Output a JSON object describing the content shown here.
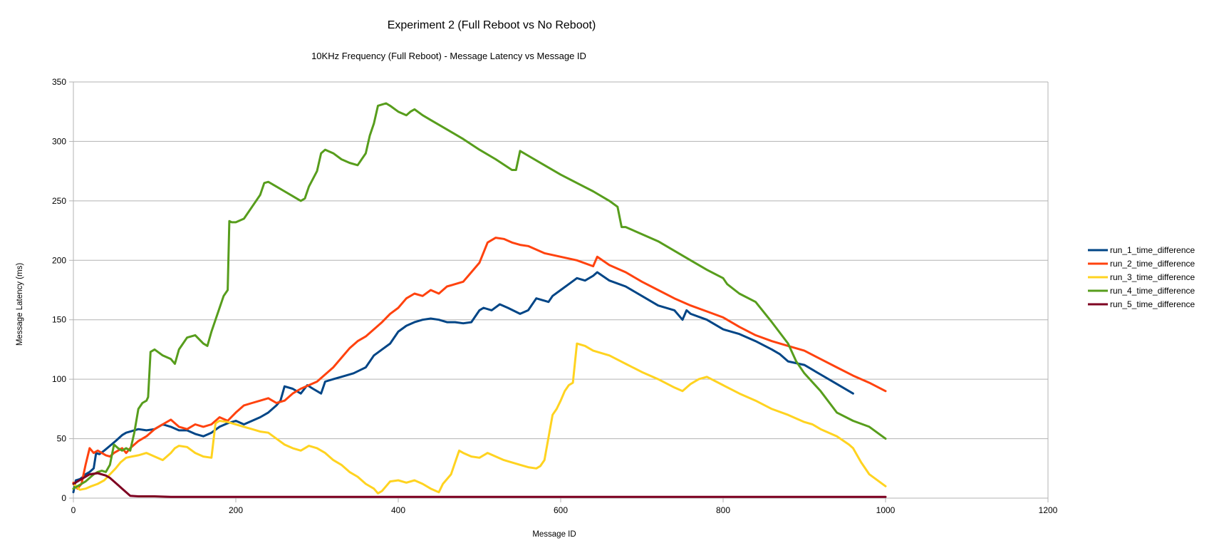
{
  "chart_data": {
    "type": "line",
    "title": "Experiment 2 (Full Reboot vs No Reboot)",
    "subtitle": "10KHz Frequency (Full Reboot) - Message Latency vs Message ID",
    "xlabel": "Message ID",
    "ylabel": "Message Latency (ms)",
    "xlim": [
      0,
      1200
    ],
    "ylim": [
      0,
      350
    ],
    "xticks": [
      0,
      200,
      400,
      600,
      800,
      1000,
      1200
    ],
    "yticks": [
      0,
      50,
      100,
      150,
      200,
      250,
      300,
      350
    ],
    "grid": "horizontal",
    "legend": "right",
    "series": [
      {
        "name": "run_1_time_difference",
        "color": "#004586",
        "x": [
          0,
          3,
          8,
          12,
          15,
          20,
          25,
          28,
          32,
          38,
          45,
          52,
          60,
          65,
          70,
          80,
          90,
          100,
          110,
          120,
          130,
          140,
          150,
          160,
          170,
          180,
          190,
          200,
          210,
          220,
          230,
          240,
          250,
          255,
          260,
          270,
          280,
          288,
          295,
          305,
          310,
          320,
          330,
          345,
          360,
          370,
          380,
          390,
          400,
          410,
          420,
          430,
          440,
          450,
          460,
          470,
          480,
          490,
          500,
          505,
          515,
          525,
          535,
          550,
          560,
          570,
          575,
          585,
          590,
          600,
          610,
          620,
          630,
          640,
          645,
          660,
          680,
          700,
          720,
          740,
          750,
          755,
          760,
          780,
          800,
          820,
          840,
          860,
          870,
          880,
          900,
          920,
          940,
          960
        ],
        "values": [
          5,
          15,
          16,
          18,
          20,
          22,
          25,
          38,
          37,
          40,
          44,
          48,
          53,
          55,
          56,
          58,
          57,
          58,
          62,
          60,
          57,
          57,
          54,
          52,
          55,
          60,
          63,
          65,
          62,
          65,
          68,
          72,
          78,
          82,
          94,
          92,
          88,
          95,
          92,
          88,
          98,
          100,
          102,
          105,
          110,
          120,
          125,
          130,
          140,
          145,
          148,
          150,
          151,
          150,
          148,
          148,
          147,
          148,
          158,
          160,
          158,
          163,
          160,
          155,
          158,
          168,
          167,
          165,
          170,
          175,
          180,
          185,
          183,
          187,
          190,
          183,
          178,
          170,
          162,
          158,
          150,
          158,
          155,
          150,
          142,
          138,
          132,
          125,
          121,
          115,
          112,
          104,
          96,
          88
        ]
      },
      {
        "name": "run_2_time_difference",
        "color": "#ff420e",
        "x": [
          0,
          5,
          10,
          15,
          20,
          25,
          30,
          35,
          40,
          45,
          50,
          55,
          60,
          65,
          70,
          80,
          90,
          100,
          110,
          120,
          130,
          140,
          150,
          160,
          170,
          180,
          190,
          200,
          210,
          220,
          230,
          240,
          250,
          260,
          270,
          280,
          290,
          300,
          310,
          320,
          330,
          340,
          350,
          360,
          370,
          380,
          390,
          400,
          410,
          420,
          430,
          440,
          450,
          460,
          470,
          480,
          490,
          500,
          510,
          520,
          530,
          540,
          550,
          560,
          580,
          600,
          620,
          640,
          645,
          660,
          680,
          700,
          720,
          740,
          760,
          780,
          800,
          820,
          840,
          860,
          880,
          900,
          920,
          940,
          960,
          980,
          1000
        ],
        "values": [
          13,
          8,
          12,
          28,
          42,
          38,
          40,
          38,
          36,
          35,
          38,
          40,
          42,
          38,
          42,
          48,
          52,
          58,
          62,
          66,
          60,
          58,
          62,
          60,
          62,
          68,
          65,
          72,
          78,
          80,
          82,
          84,
          80,
          82,
          88,
          92,
          95,
          98,
          104,
          110,
          118,
          126,
          132,
          136,
          142,
          148,
          155,
          160,
          168,
          172,
          170,
          175,
          172,
          178,
          180,
          182,
          190,
          198,
          215,
          219,
          218,
          215,
          213,
          212,
          206,
          203,
          200,
          195,
          203,
          196,
          190,
          182,
          175,
          168,
          162,
          157,
          152,
          144,
          137,
          132,
          128,
          124,
          117,
          110,
          103,
          97,
          90
        ]
      },
      {
        "name": "run_3_time_difference",
        "color": "#ffd320",
        "x": [
          0,
          8,
          15,
          22,
          30,
          38,
          45,
          52,
          58,
          65,
          72,
          80,
          90,
          100,
          110,
          120,
          125,
          130,
          140,
          150,
          160,
          170,
          175,
          180,
          190,
          200,
          210,
          220,
          230,
          240,
          250,
          260,
          270,
          280,
          290,
          300,
          310,
          320,
          330,
          340,
          350,
          360,
          370,
          375,
          380,
          385,
          390,
          400,
          410,
          420,
          430,
          440,
          450,
          455,
          465,
          475,
          480,
          490,
          500,
          510,
          520,
          530,
          540,
          550,
          560,
          570,
          575,
          580,
          590,
          595,
          600,
          605,
          610,
          615,
          620,
          630,
          640,
          660,
          680,
          700,
          720,
          740,
          750,
          760,
          770,
          780,
          800,
          820,
          840,
          860,
          880,
          900,
          910,
          920,
          940,
          955,
          960,
          970,
          980,
          1000
        ],
        "values": [
          12,
          7,
          8,
          10,
          12,
          15,
          20,
          25,
          30,
          34,
          35,
          36,
          38,
          35,
          32,
          38,
          42,
          44,
          43,
          38,
          35,
          34,
          63,
          65,
          64,
          62,
          60,
          58,
          56,
          55,
          50,
          45,
          42,
          40,
          44,
          42,
          38,
          32,
          28,
          22,
          18,
          12,
          8,
          4,
          6,
          10,
          14,
          15,
          13,
          15,
          12,
          8,
          5,
          12,
          20,
          40,
          38,
          35,
          34,
          38,
          35,
          32,
          30,
          28,
          26,
          25,
          27,
          32,
          70,
          75,
          82,
          90,
          95,
          97,
          130,
          128,
          124,
          120,
          113,
          106,
          100,
          93,
          90,
          96,
          100,
          102,
          95,
          88,
          82,
          75,
          70,
          64,
          62,
          58,
          52,
          45,
          42,
          30,
          20,
          10
        ]
      },
      {
        "name": "run_4_time_difference",
        "color": "#579d1c",
        "x": [
          0,
          5,
          10,
          15,
          20,
          25,
          30,
          35,
          40,
          45,
          50,
          55,
          60,
          65,
          70,
          75,
          80,
          85,
          90,
          92,
          95,
          100,
          110,
          120,
          125,
          130,
          140,
          150,
          160,
          165,
          170,
          175,
          180,
          185,
          190,
          192,
          195,
          200,
          210,
          220,
          230,
          235,
          240,
          250,
          260,
          270,
          280,
          285,
          290,
          300,
          305,
          310,
          320,
          330,
          340,
          350,
          360,
          365,
          370,
          375,
          380,
          385,
          390,
          400,
          410,
          415,
          420,
          430,
          440,
          460,
          480,
          500,
          520,
          540,
          545,
          550,
          560,
          580,
          600,
          620,
          640,
          660,
          670,
          675,
          680,
          700,
          720,
          740,
          760,
          780,
          800,
          805,
          820,
          840,
          860,
          880,
          890,
          900,
          920,
          940,
          960,
          980,
          1000
        ],
        "values": [
          8,
          10,
          12,
          14,
          17,
          20,
          22,
          23,
          22,
          28,
          45,
          42,
          40,
          42,
          40,
          55,
          75,
          80,
          82,
          85,
          123,
          125,
          120,
          117,
          113,
          125,
          135,
          137,
          130,
          128,
          140,
          150,
          160,
          170,
          175,
          233,
          232,
          232,
          235,
          245,
          255,
          265,
          266,
          262,
          258,
          254,
          250,
          252,
          262,
          275,
          290,
          293,
          290,
          285,
          282,
          280,
          290,
          305,
          315,
          330,
          331,
          332,
          330,
          325,
          322,
          325,
          327,
          322,
          318,
          310,
          302,
          293,
          285,
          276,
          276,
          292,
          288,
          280,
          272,
          265,
          258,
          250,
          245,
          228,
          228,
          222,
          216,
          208,
          200,
          192,
          185,
          180,
          172,
          165,
          148,
          130,
          115,
          105,
          90,
          72,
          65,
          60,
          50
        ]
      },
      {
        "name": "run_5_time_difference",
        "color": "#7e0021",
        "x": [
          0,
          10,
          20,
          30,
          40,
          45,
          50,
          55,
          60,
          65,
          70,
          80,
          90,
          100,
          120,
          150,
          200,
          300,
          400,
          500,
          600,
          700,
          800,
          900,
          1000
        ],
        "values": [
          12,
          16,
          20,
          21,
          19,
          17,
          14,
          11,
          8,
          5,
          2,
          1.5,
          1.5,
          1.5,
          1,
          1,
          1,
          1,
          1,
          1,
          1,
          1,
          1,
          1,
          1
        ]
      }
    ]
  }
}
